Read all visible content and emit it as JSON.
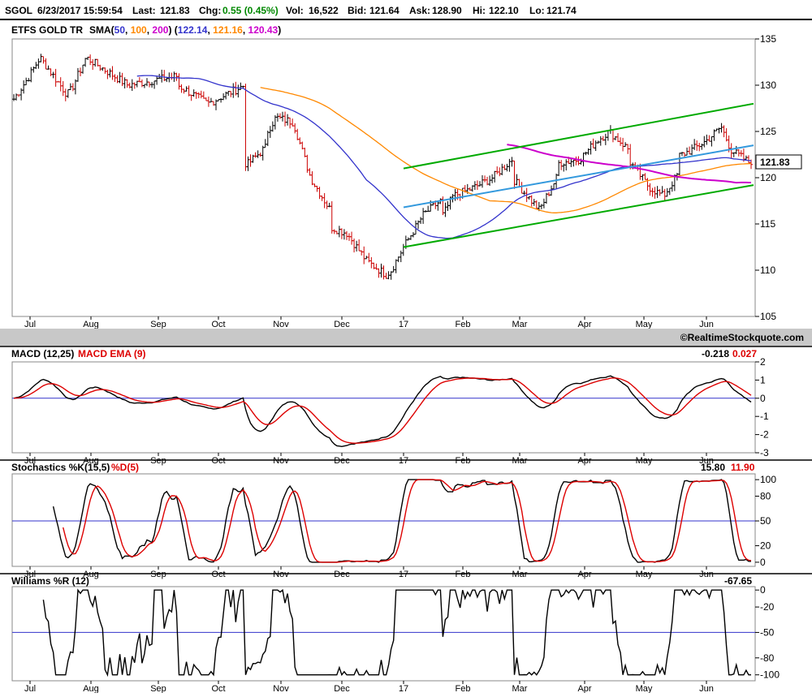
{
  "header": {
    "symbol": "SGOL",
    "datetime": "6/23/2017 15:59:54",
    "last_label": "Last:",
    "last": "121.83",
    "chg_label": "Chg:",
    "chg": "0.55 (0.45%)",
    "vol_label": "Vol:",
    "vol": "16,522",
    "bid_label": "Bid:",
    "bid": "121.64",
    "ask_label": "Ask:",
    "ask": "128.90",
    "hi_label": "Hi:",
    "hi": "122.10",
    "lo_label": "Lo:",
    "lo": "121.74"
  },
  "main_chart": {
    "title": "ETFS GOLD TR",
    "sma_label": "SMA(",
    "sma_periods": [
      "50",
      "100",
      "200"
    ],
    "sma_mid": ") (",
    "sma_values": [
      "122.14",
      "121.16",
      "120.43"
    ],
    "sma_end": ")",
    "last_price": "121.83",
    "watermark": "©RealtimeStockquote.com",
    "y_ticks": [
      "135",
      "130",
      "125",
      "120",
      "115",
      "110",
      "105"
    ]
  },
  "x_ticks": [
    "Jul",
    "Aug",
    "Sep",
    "Oct",
    "Nov",
    "Dec",
    "17",
    "Feb",
    "Mar",
    "Apr",
    "May",
    "Jun"
  ],
  "macd": {
    "label": "MACD (12,25)",
    "signal_label": "MACD EMA (9)",
    "value": "-0.218",
    "signal_value": "0.027",
    "y_ticks": [
      "2",
      "1",
      "0",
      "-1",
      "-2",
      "-3"
    ]
  },
  "stoch": {
    "label": "Stochastics %K(15,5)",
    "d_label": "%D(5)",
    "k_value": "15.80",
    "d_value": "11.90",
    "y_ticks": [
      "100",
      "80",
      "50",
      "20",
      "0"
    ]
  },
  "williams": {
    "label": "Williams %R (12)",
    "value": "-67.65",
    "y_ticks": [
      "0",
      "-20",
      "-50",
      "-80",
      "-100"
    ]
  },
  "colors": {
    "up": "#000000",
    "down": "#cc0000",
    "sma50": "#3333cc",
    "sma100": "#ff8800",
    "sma200": "#cc00cc",
    "channel": "#00aa00",
    "midline": "#3399dd",
    "macd": "#000000",
    "macd_signal": "#dd0000",
    "refline": "#3333cc",
    "separator": "#bbbbbb"
  },
  "chart_data": [
    {
      "type": "candlestick",
      "title": "ETFS GOLD TR",
      "x": [
        "Jul",
        "Aug",
        "Sep",
        "Oct",
        "Nov",
        "Dec",
        "17",
        "Feb",
        "Mar",
        "Apr",
        "May",
        "Jun"
      ],
      "close_by_month_start": [
        128.5,
        130.5,
        130.0,
        126.0,
        126.5,
        112.5,
        111.5,
        118.0,
        121.5,
        118.0,
        119.5,
        124.0
      ],
      "series": [
        {
          "name": "SMA 50",
          "last": 122.14
        },
        {
          "name": "SMA 100",
          "last": 121.16
        },
        {
          "name": "SMA 200",
          "last": 120.43
        }
      ],
      "last": 121.83,
      "ylim": [
        105,
        135
      ]
    },
    {
      "type": "line",
      "title": "MACD (12,25)",
      "x": [
        "Jul",
        "Aug",
        "Sep",
        "Oct",
        "Nov",
        "Dec",
        "17",
        "Feb",
        "Mar",
        "Apr",
        "May",
        "Jun"
      ],
      "series": [
        {
          "name": "MACD (12,25)",
          "values": [
            0.1,
            0.4,
            0.2,
            -0.4,
            -1.4,
            -1.2,
            -2.1,
            0.8,
            1.1,
            0.5,
            0.7,
            0.4
          ],
          "last": -0.218
        },
        {
          "name": "MACD EMA (9)",
          "values": [
            0.0,
            0.3,
            0.3,
            -0.1,
            -0.9,
            -0.9,
            -2.0,
            0.5,
            1.0,
            0.3,
            0.8,
            0.3
          ],
          "last": 0.027
        }
      ],
      "ylim": [
        -3,
        2
      ]
    },
    {
      "type": "line",
      "title": "Stochastics %K(15,5)",
      "x": [
        "Jul",
        "Aug",
        "Sep",
        "Oct",
        "Nov",
        "Dec",
        "17",
        "Feb",
        "Mar",
        "Apr",
        "May",
        "Jun"
      ],
      "series": [
        {
          "name": "%K(15,5)",
          "values": [
            30,
            75,
            10,
            40,
            80,
            10,
            12,
            85,
            80,
            80,
            10,
            85
          ],
          "last": 15.8
        },
        {
          "name": "%D(5)",
          "values": [
            25,
            60,
            20,
            35,
            70,
            15,
            10,
            80,
            85,
            75,
            20,
            80
          ],
          "last": 11.9
        }
      ],
      "ylim": [
        0,
        100
      ],
      "reference_line": 50
    },
    {
      "type": "line",
      "title": "Williams %R (12)",
      "x": [
        "Jul",
        "Aug",
        "Sep",
        "Oct",
        "Nov",
        "Dec",
        "17",
        "Feb",
        "Mar",
        "Apr",
        "May",
        "Jun"
      ],
      "series": [
        {
          "name": "Williams %R (12)",
          "values": [
            -60,
            -10,
            -90,
            -30,
            -20,
            -95,
            -90,
            -10,
            -20,
            -5,
            -95,
            -5
          ],
          "last": -67.65
        }
      ],
      "ylim": [
        -100,
        0
      ],
      "reference_line": -50
    }
  ]
}
